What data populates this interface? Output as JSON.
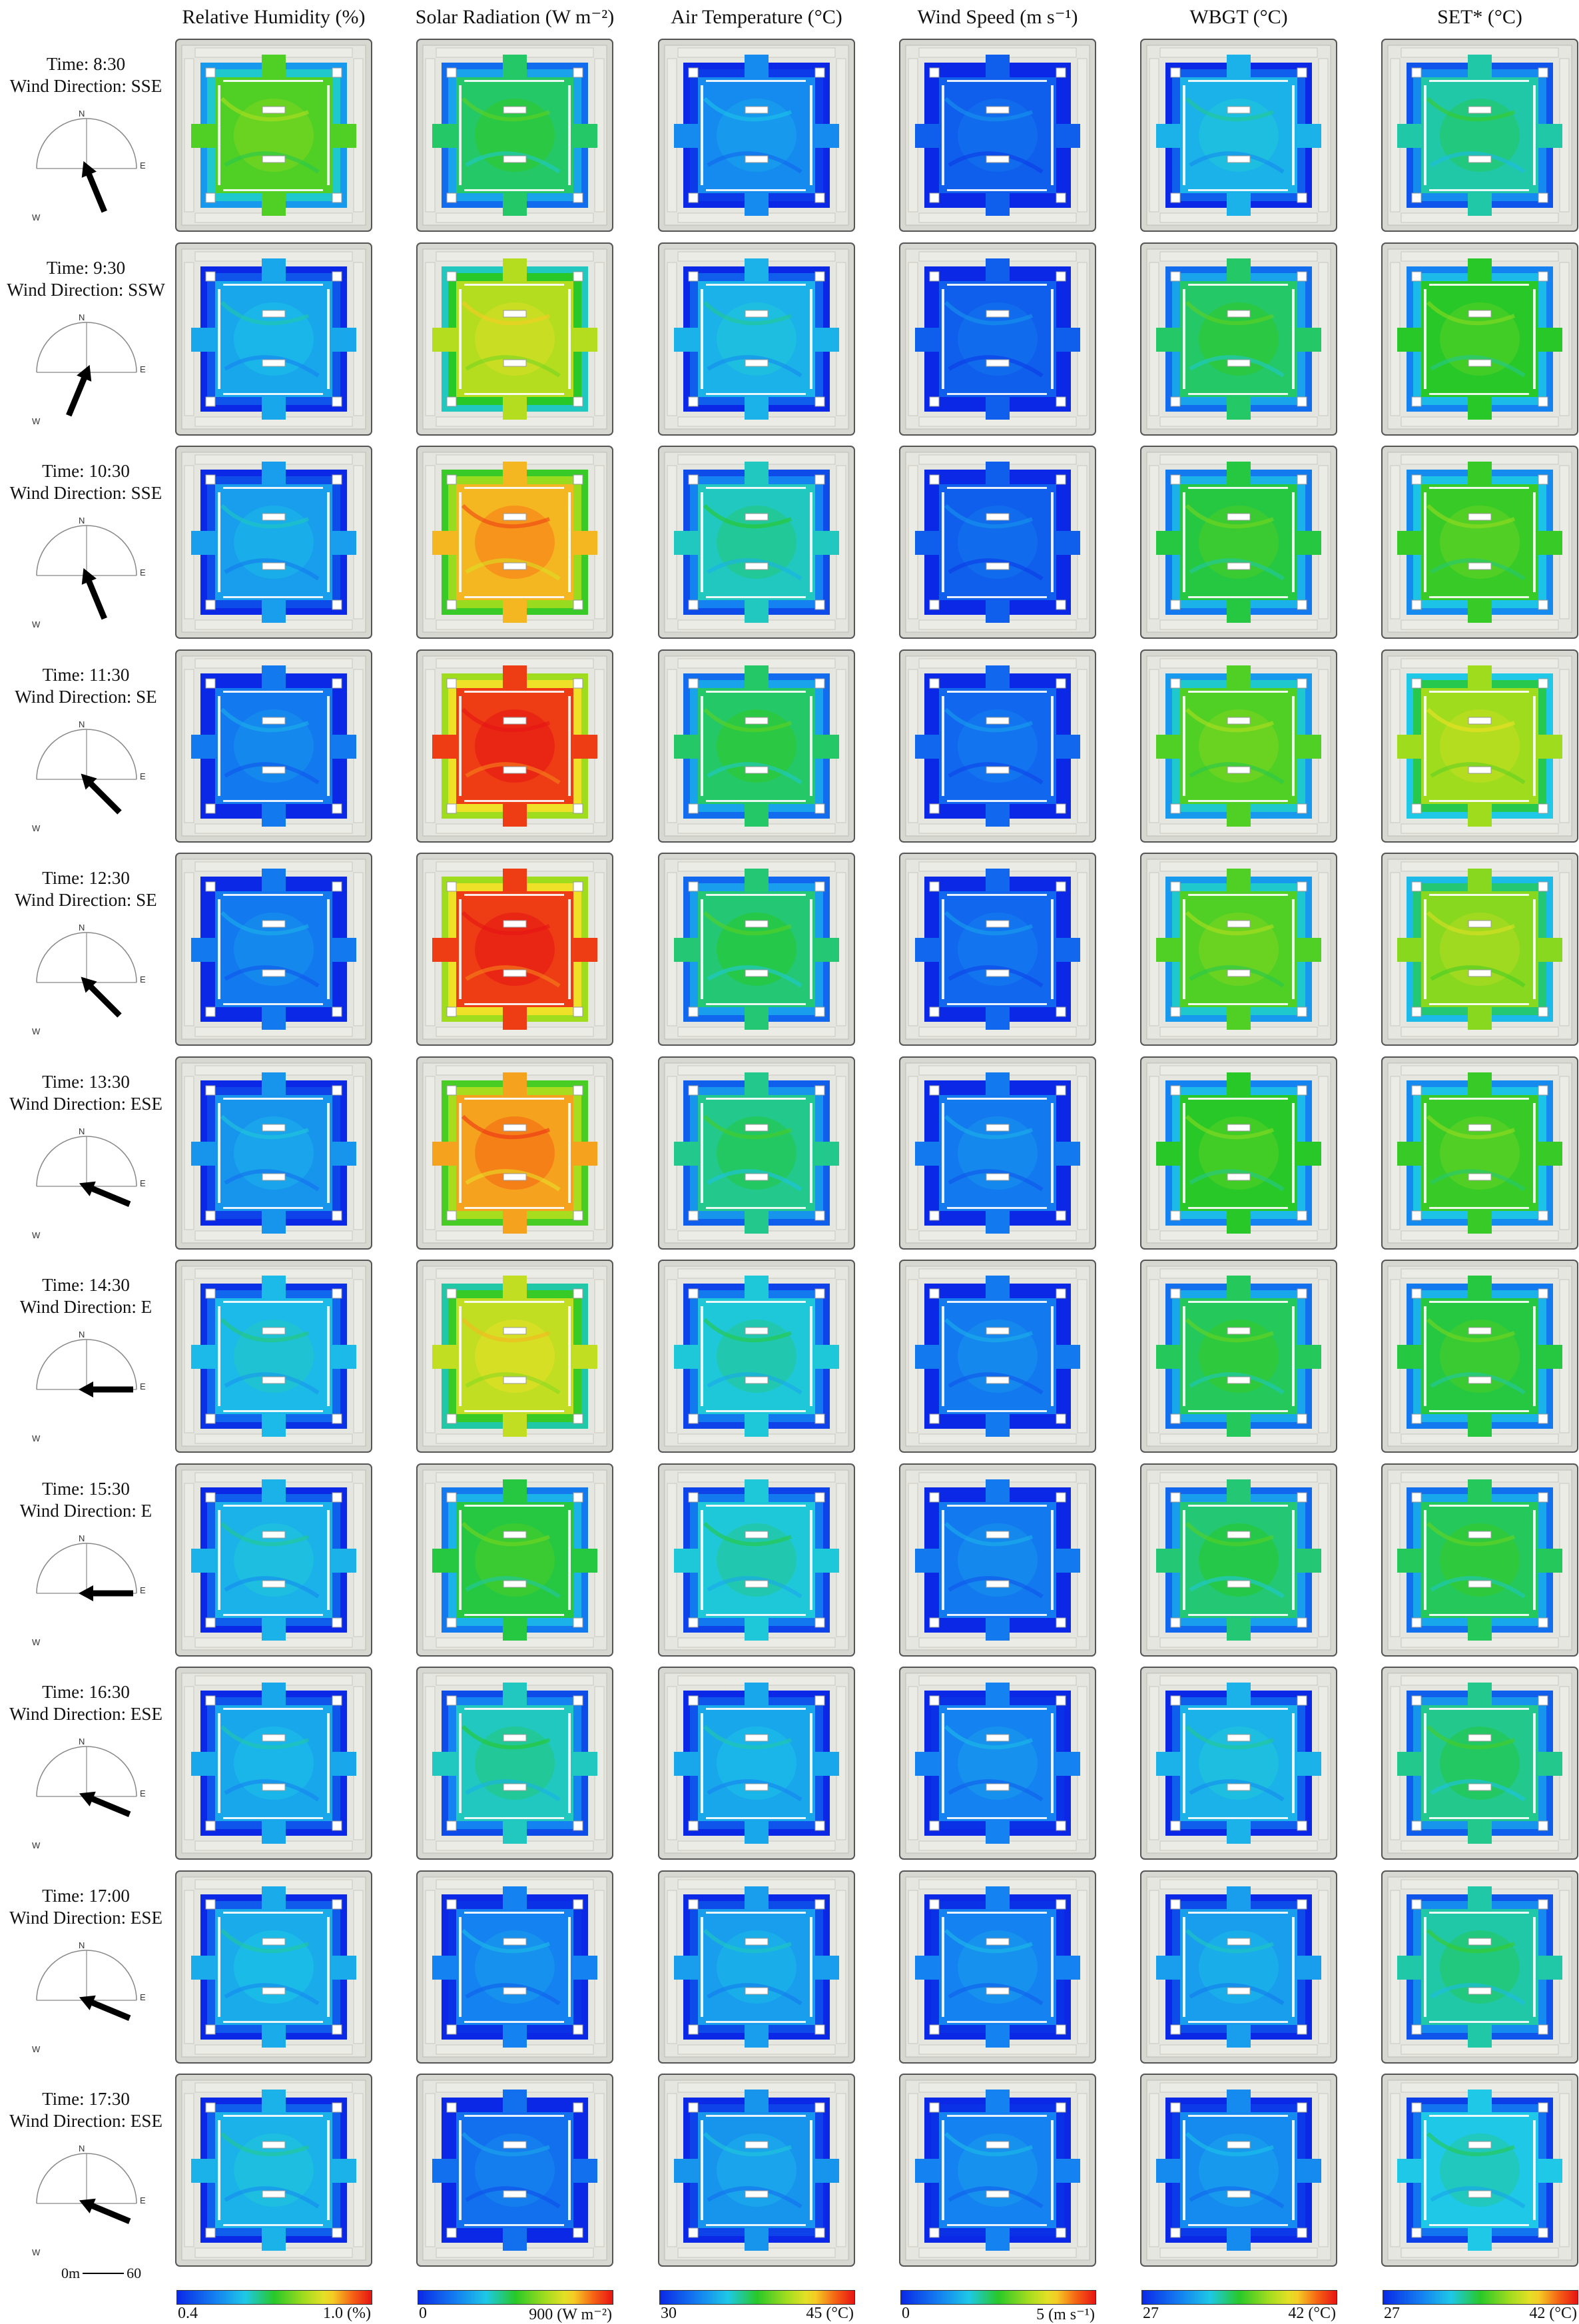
{
  "columns": [
    {
      "id": "rh",
      "title": "Relative Humidity (%)",
      "cmin": "0.4",
      "cmax": "1.0 (%)",
      "palette": "rh"
    },
    {
      "id": "sr",
      "title": "Solar Radiation (W m⁻²)",
      "cmin": "0",
      "cmax": "900 (W m⁻²)",
      "palette": "rainbow"
    },
    {
      "id": "ta",
      "title": "Air Temperature (°C)",
      "cmin": "30",
      "cmax": "45 (°C)",
      "palette": "rainbow"
    },
    {
      "id": "ws",
      "title": "Wind Speed (m s⁻¹)",
      "cmin": "0",
      "cmax": "5 (m s⁻¹)",
      "palette": "rainbow"
    },
    {
      "id": "wbgt",
      "title": "WBGT (°C)",
      "cmin": "27",
      "cmax": "42 (°C)",
      "palette": "rainbow"
    },
    {
      "id": "set",
      "title": "SET* (°C)",
      "cmin": "27",
      "cmax": "42 (°C)",
      "palette": "rainbow"
    }
  ],
  "rows": [
    {
      "time": "Time: 8:30",
      "wind": "Wind Direction: SSE",
      "arrow_deg": 157.5,
      "levels": {
        "rh": 0.55,
        "sr": 0.45,
        "ta": 0.22,
        "ws": 0.12,
        "wbgt": 0.3,
        "set": 0.4
      }
    },
    {
      "time": "Time: 9:30",
      "wind": "Wind Direction: SSW",
      "arrow_deg": 202.5,
      "levels": {
        "rh": 0.28,
        "sr": 0.68,
        "ta": 0.3,
        "ws": 0.12,
        "wbgt": 0.45,
        "set": 0.5
      }
    },
    {
      "time": "Time: 10:30",
      "wind": "Wind Direction: SSE",
      "arrow_deg": 157.5,
      "levels": {
        "rh": 0.26,
        "sr": 0.82,
        "ta": 0.38,
        "ws": 0.12,
        "wbgt": 0.48,
        "set": 0.52
      }
    },
    {
      "time": "Time: 11:30",
      "wind": "Wind Direction: SE",
      "arrow_deg": 135,
      "levels": {
        "rh": 0.18,
        "sr": 0.95,
        "ta": 0.45,
        "ws": 0.14,
        "wbgt": 0.55,
        "set": 0.65
      }
    },
    {
      "time": "Time: 12:30",
      "wind": "Wind Direction: SE",
      "arrow_deg": 135,
      "levels": {
        "rh": 0.18,
        "sr": 0.95,
        "ta": 0.44,
        "ws": 0.14,
        "wbgt": 0.55,
        "set": 0.62
      }
    },
    {
      "time": "Time: 13:30",
      "wind": "Wind Direction: ESE",
      "arrow_deg": 112.5,
      "levels": {
        "rh": 0.24,
        "sr": 0.84,
        "ta": 0.42,
        "ws": 0.18,
        "wbgt": 0.5,
        "set": 0.52
      }
    },
    {
      "time": "Time: 14:30",
      "wind": "Wind Direction: E",
      "arrow_deg": 90,
      "levels": {
        "rh": 0.32,
        "sr": 0.7,
        "ta": 0.36,
        "ws": 0.18,
        "wbgt": 0.46,
        "set": 0.48
      }
    },
    {
      "time": "Time: 15:30",
      "wind": "Wind Direction: E",
      "arrow_deg": 90,
      "levels": {
        "rh": 0.3,
        "sr": 0.48,
        "ta": 0.36,
        "ws": 0.18,
        "wbgt": 0.44,
        "set": 0.46
      }
    },
    {
      "time": "Time: 16:30",
      "wind": "Wind Direction: ESE",
      "arrow_deg": 112.5,
      "levels": {
        "rh": 0.28,
        "sr": 0.38,
        "ta": 0.28,
        "ws": 0.2,
        "wbgt": 0.3,
        "set": 0.42
      }
    },
    {
      "time": "Time: 17:00",
      "wind": "Wind Direction: ESE",
      "arrow_deg": 112.5,
      "levels": {
        "rh": 0.29,
        "sr": 0.2,
        "ta": 0.26,
        "ws": 0.2,
        "wbgt": 0.26,
        "set": 0.4
      }
    },
    {
      "time": "Time: 17:30",
      "wind": "Wind Direction: ESE",
      "arrow_deg": 112.5,
      "levels": {
        "rh": 0.3,
        "sr": 0.16,
        "ta": 0.24,
        "ws": 0.2,
        "wbgt": 0.22,
        "set": 0.35
      }
    }
  ],
  "compass_letters": {
    "n": "N",
    "e": "E",
    "w": "W"
  },
  "scale": {
    "start": "0m",
    "end": "60"
  }
}
